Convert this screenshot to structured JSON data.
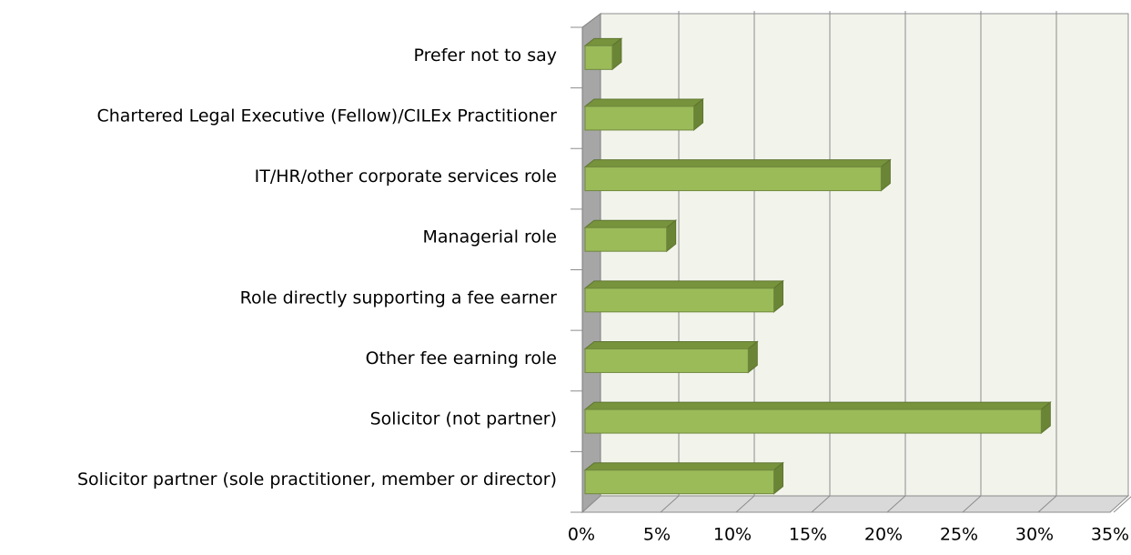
{
  "chart_data": {
    "type": "bar3d",
    "categories": [
      "Prefer not to say",
      "Chartered Legal Executive (Fellow)/CILEx Practitioner",
      "IT/HR/other corporate services role",
      "Managerial role",
      "Role directly supporting a fee earner",
      "Other fee earning role",
      "Solicitor (not partner)",
      "Solicitor partner (sole practitioner, member or director)"
    ],
    "values": [
      1.8,
      7.2,
      19.6,
      5.4,
      12.5,
      10.8,
      30.2,
      12.5
    ],
    "color": "#9bbb59",
    "xlim": [
      0,
      35
    ],
    "xticks": [
      {
        "value": 0,
        "label": "0%"
      },
      {
        "value": 5,
        "label": "5%"
      },
      {
        "value": 10,
        "label": "10%"
      },
      {
        "value": 15,
        "label": "15%"
      },
      {
        "value": 20,
        "label": "20%"
      },
      {
        "value": 25,
        "label": "25%"
      },
      {
        "value": 30,
        "label": "30%"
      },
      {
        "value": 35,
        "label": "35%"
      }
    ],
    "grid": true
  }
}
